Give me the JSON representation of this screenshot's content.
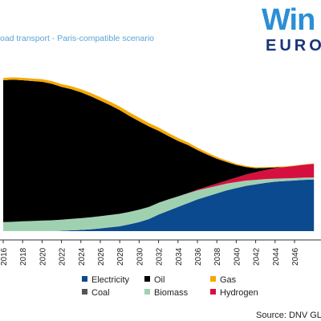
{
  "subtitle": "oad transport - Paris-compatible scenario",
  "logo": {
    "top": "Win",
    "bottom": "EURO"
  },
  "source": "Source: DNV GL for V",
  "chart_data": {
    "type": "area",
    "stacked": true,
    "x": [
      2016,
      2017,
      2018,
      2019,
      2020,
      2021,
      2022,
      2023,
      2024,
      2025,
      2026,
      2027,
      2028,
      2029,
      2030,
      2031,
      2032,
      2033,
      2034,
      2035,
      2036,
      2037,
      2038,
      2039,
      2040,
      2041,
      2042,
      2043,
      2044,
      2045,
      2046,
      2047,
      2048
    ],
    "x_tick_labels": [
      "2016",
      "2018",
      "2020",
      "2022",
      "2024",
      "2026",
      "2028",
      "2030",
      "2032",
      "2034",
      "2036",
      "2038",
      "2040",
      "2042",
      "2044",
      "2046"
    ],
    "ylim": [
      0,
      100
    ],
    "grid": false,
    "legend_position": "bottom",
    "series": [
      {
        "name": "Electricity",
        "color": "#0b4a8f",
        "values": [
          0,
          0,
          0,
          0,
          0,
          0,
          0.2,
          0.5,
          0.8,
          1.2,
          1.8,
          2.5,
          3.2,
          4.5,
          6,
          8,
          11,
          13.5,
          16,
          18.5,
          21,
          23,
          25,
          27,
          28.5,
          30,
          31,
          32,
          32.8,
          33.2,
          33.6,
          34,
          34.2
        ]
      },
      {
        "name": "Coal",
        "color": "#555555",
        "values": [
          0,
          0,
          0,
          0,
          0,
          0,
          0,
          0,
          0,
          0,
          0,
          0,
          0,
          0,
          0,
          0,
          0,
          0,
          0,
          0,
          0,
          0,
          0,
          0,
          0,
          0,
          0,
          0,
          0,
          0,
          0,
          0,
          0
        ]
      },
      {
        "name": "Biomass",
        "color": "#9fd1b0",
        "values": [
          6,
          6.2,
          6.5,
          6.7,
          7,
          7.2,
          7.4,
          7.6,
          7.8,
          8,
          8.1,
          8.2,
          8.3,
          8.3,
          8.2,
          8,
          7.8,
          7.5,
          7,
          6.5,
          6,
          5.5,
          5,
          4.5,
          4,
          3.5,
          3,
          2.5,
          2,
          1.8,
          1.6,
          1.5,
          1.4
        ]
      },
      {
        "name": "Hydrogen",
        "color": "#d5103f",
        "values": [
          0,
          0,
          0,
          0,
          0,
          0,
          0,
          0,
          0,
          0,
          0,
          0,
          0,
          0,
          0,
          0,
          0,
          0,
          0,
          0.2,
          0.5,
          1,
          1.5,
          2,
          3,
          4,
          5,
          6,
          7,
          7.5,
          8,
          8.5,
          9
        ]
      },
      {
        "name": "Oil",
        "color": "#000000",
        "values": [
          94,
          94.2,
          93.5,
          92.8,
          92,
          90.5,
          88,
          86,
          83.4,
          80.2,
          76.6,
          72.8,
          68.7,
          63.5,
          58.6,
          53.4,
          47.7,
          42,
          36.8,
          31.9,
          26.2,
          21.2,
          16.5,
          12.3,
          8.3,
          5,
          2.7,
          1.4,
          0.4,
          0,
          0,
          0,
          0
        ]
      },
      {
        "name": "Gas",
        "color": "#f5a800",
        "values": [
          1.5,
          1.5,
          1.6,
          1.6,
          1.7,
          1.8,
          1.9,
          2,
          2.1,
          2.2,
          2.3,
          2.3,
          2.4,
          2.4,
          2.4,
          2.3,
          2.2,
          2.1,
          2,
          1.8,
          1.6,
          1.4,
          1.2,
          1,
          0.8,
          0.7,
          0.6,
          0.5,
          0.4,
          0.4,
          0.3,
          0.3,
          0.3
        ]
      }
    ],
    "legend_rows": [
      [
        "Electricity",
        "Oil",
        "Gas"
      ],
      [
        "Coal",
        "Biomass",
        "Hydrogen"
      ]
    ]
  }
}
